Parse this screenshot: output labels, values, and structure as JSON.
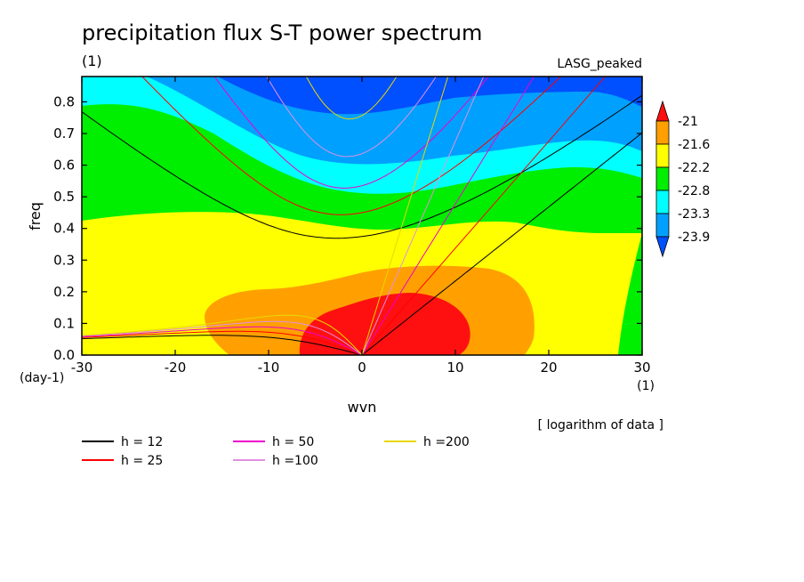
{
  "chart_data": {
    "type": "heatmap",
    "title": "precipitation flux S-T power spectrum",
    "subtitle_left": "(1)",
    "subtitle_right": "LASG_peaked",
    "xlabel": "wvn",
    "ylabel": "freq",
    "x_unit": "(1)",
    "y_unit": "(day-1)",
    "note": "[ logarithm of data ]",
    "xlim": [
      -30,
      30
    ],
    "ylim": [
      0,
      0.88
    ],
    "x_ticks": [
      -30,
      -20,
      -10,
      0,
      10,
      20,
      30
    ],
    "x_tick_labels": [
      "-30",
      "-20",
      "-10",
      "0",
      "10",
      "20",
      "30"
    ],
    "y_ticks": [
      0.0,
      0.1,
      0.2,
      0.3,
      0.4,
      0.5,
      0.6,
      0.7,
      0.8
    ],
    "y_tick_labels": [
      "0.0",
      "0.1",
      "0.2",
      "0.3",
      "0.4",
      "0.5",
      "0.6",
      "0.7",
      "0.8"
    ],
    "colorbar": {
      "levels": [
        -21,
        -21.6,
        -22.2,
        -22.8,
        -23.3,
        -23.9
      ],
      "level_labels": [
        "-21",
        "-21.6",
        "-22.2",
        "-22.8",
        "-23.3",
        "-23.9"
      ],
      "colors": [
        "#ff1010",
        "#ffa000",
        "#ffff00",
        "#00ee00",
        "#00ffff",
        "#00a0ff",
        "#0050ff"
      ]
    },
    "dispersion_curves": [
      {
        "label": "h = 12",
        "h": 12,
        "color": "#000000"
      },
      {
        "label": "h = 25",
        "h": 25,
        "color": "#ff0000"
      },
      {
        "label": "h = 50",
        "h": 50,
        "color": "#ee00cc"
      },
      {
        "label": "h =100",
        "h": 100,
        "color": "#e090e0"
      },
      {
        "label": "h =200",
        "h": 200,
        "color": "#e8d800"
      }
    ]
  }
}
